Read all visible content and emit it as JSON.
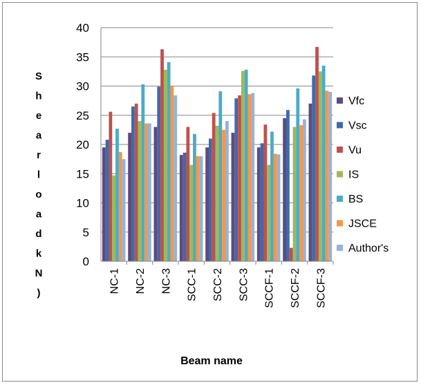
{
  "chart_data": {
    "type": "bar",
    "title": "",
    "xlabel": "Beam name",
    "ylabel": "Shear load kN)",
    "ylim": [
      0,
      40
    ],
    "yticks": [
      "0",
      "5",
      "10",
      "15",
      "20",
      "25",
      "30",
      "35",
      "40"
    ],
    "grid": true,
    "legend_position": "right",
    "categories": [
      "NC-1",
      "NC-2",
      "NC-3",
      "SCC-1",
      "SCC-2",
      "SCC-3",
      "SCCF-1",
      "SCCF-2",
      "SCCF-3"
    ],
    "series": [
      {
        "name": "Vfc",
        "color": "#604a7b",
        "values": [
          19.5,
          22.0,
          23.0,
          18.2,
          19.5,
          22.0,
          19.5,
          24.5,
          27.0
        ]
      },
      {
        "name": "Vsc",
        "color": "#3d6bab",
        "values": [
          20.8,
          26.5,
          29.9,
          18.6,
          21.0,
          27.9,
          20.2,
          25.9,
          31.8
        ]
      },
      {
        "name": "Vu",
        "color": "#c0504d",
        "values": [
          25.6,
          27.0,
          36.3,
          23.0,
          25.4,
          28.4,
          23.4,
          2.3,
          36.7
        ]
      },
      {
        "name": "IS",
        "color": "#9bbb59",
        "values": [
          14.7,
          24.0,
          32.8,
          16.5,
          23.2,
          32.6,
          16.5,
          23.0,
          32.5
        ]
      },
      {
        "name": "BS",
        "color": "#4bacc6",
        "values": [
          22.7,
          30.3,
          34.1,
          21.8,
          29.1,
          32.8,
          22.2,
          29.6,
          33.5
        ]
      },
      {
        "name": "JSCE",
        "color": "#f79646",
        "values": [
          18.7,
          23.6,
          30.0,
          18.0,
          22.5,
          28.6,
          18.4,
          23.3,
          29.2
        ]
      },
      {
        "name": "Author's",
        "color": "#95b3d7",
        "values": [
          17.5,
          23.6,
          28.4,
          18.0,
          24.0,
          28.8,
          18.3,
          24.3,
          29.0
        ]
      }
    ]
  }
}
